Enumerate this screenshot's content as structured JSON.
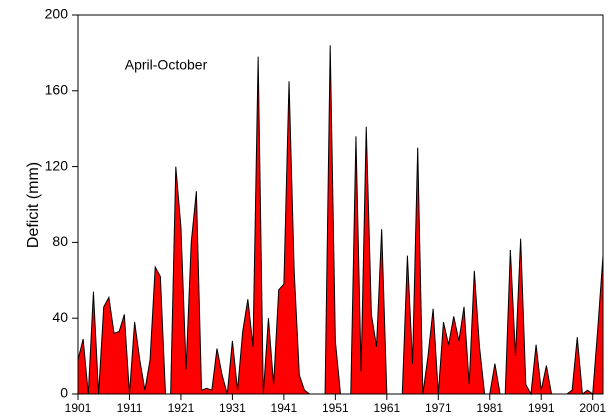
{
  "chart_data": {
    "type": "area",
    "annotation": "April-October",
    "y_label": "Deficit (mm)",
    "color": "#ff0000",
    "x": [
      1901,
      1902,
      1903,
      1904,
      1905,
      1906,
      1907,
      1908,
      1909,
      1910,
      1911,
      1912,
      1913,
      1914,
      1915,
      1916,
      1917,
      1918,
      1919,
      1920,
      1921,
      1922,
      1923,
      1924,
      1925,
      1926,
      1927,
      1928,
      1929,
      1930,
      1931,
      1932,
      1933,
      1934,
      1935,
      1936,
      1937,
      1938,
      1939,
      1940,
      1941,
      1942,
      1943,
      1944,
      1945,
      1946,
      1947,
      1948,
      1949,
      1950,
      1951,
      1952,
      1953,
      1954,
      1955,
      1956,
      1957,
      1958,
      1959,
      1960,
      1961,
      1962,
      1963,
      1964,
      1965,
      1966,
      1967,
      1968,
      1969,
      1970,
      1971,
      1972,
      1973,
      1974,
      1975,
      1976,
      1977,
      1978,
      1979,
      1980,
      1981,
      1982,
      1983,
      1984,
      1985,
      1986,
      1987,
      1988,
      1989,
      1990,
      1991,
      1992,
      1993,
      1994,
      1995,
      1996,
      1997,
      1998,
      1999,
      2000,
      2001,
      2002,
      2003
    ],
    "values": [
      18,
      29,
      0,
      54,
      0,
      46,
      51,
      32,
      33,
      42,
      0,
      38,
      18,
      2,
      18,
      67,
      62,
      0,
      0,
      120,
      88,
      13,
      80,
      107,
      2,
      3,
      2,
      24,
      10,
      0,
      28,
      2,
      33,
      50,
      25,
      178,
      0,
      40,
      5,
      55,
      58,
      165,
      65,
      10,
      2,
      0,
      0,
      0,
      0,
      184,
      28,
      0,
      0,
      0,
      136,
      12,
      141,
      42,
      25,
      87,
      0,
      0,
      0,
      0,
      73,
      16,
      130,
      0,
      20,
      45,
      0,
      38,
      26,
      41,
      28,
      46,
      5,
      65,
      25,
      0,
      0,
      16,
      0,
      0,
      76,
      20,
      82,
      5,
      0,
      26,
      2,
      15,
      0,
      0,
      0,
      0,
      2,
      30,
      0,
      2,
      0,
      35,
      73
    ],
    "xlim": [
      1901,
      2003
    ],
    "xticks": [
      1901,
      1911,
      1921,
      1931,
      1941,
      1951,
      1961,
      1971,
      1981,
      1991,
      2001
    ],
    "ylim": [
      0,
      200
    ],
    "yticks": [
      0,
      40,
      80,
      120,
      160,
      200
    ]
  }
}
